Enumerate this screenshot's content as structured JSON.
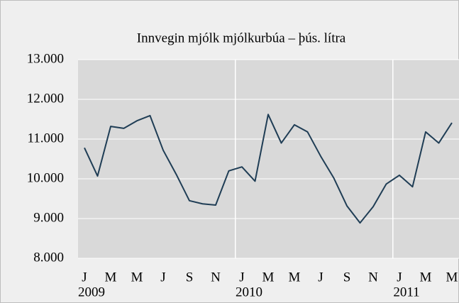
{
  "chart_data": {
    "type": "line",
    "title": "Innvegin mjólk mjólkurbúa – þús. lítra",
    "categories": [
      "J",
      null,
      "M",
      null,
      "M",
      null,
      "J",
      null,
      "S",
      null,
      "N",
      null,
      "J",
      null,
      "M",
      null,
      "M",
      null,
      "J",
      null,
      "S",
      null,
      "N",
      null,
      "J",
      null,
      "M",
      null,
      "M"
    ],
    "years": [
      "2009",
      "2010",
      "2011"
    ],
    "series": [
      {
        "color": "#1f3d55",
        "values": [
          10780,
          10070,
          11320,
          11270,
          11460,
          11590,
          10720,
          10110,
          9450,
          9370,
          9340,
          10200,
          10300,
          9940,
          11620,
          10900,
          11360,
          11180,
          10570,
          10020,
          9320,
          8890,
          9300,
          9870,
          10090,
          9800,
          11180,
          10900,
          11410
        ]
      }
    ],
    "ylim": [
      8000,
      13000
    ],
    "yticks": [
      {
        "value": 8000,
        "label": "8.000"
      },
      {
        "value": 9000,
        "label": "9.000"
      },
      {
        "value": 10000,
        "label": "10.000"
      },
      {
        "value": 11000,
        "label": "11.000"
      },
      {
        "value": 12000,
        "label": "12.000"
      },
      {
        "value": 13000,
        "label": "13.000"
      }
    ],
    "grid": true
  }
}
